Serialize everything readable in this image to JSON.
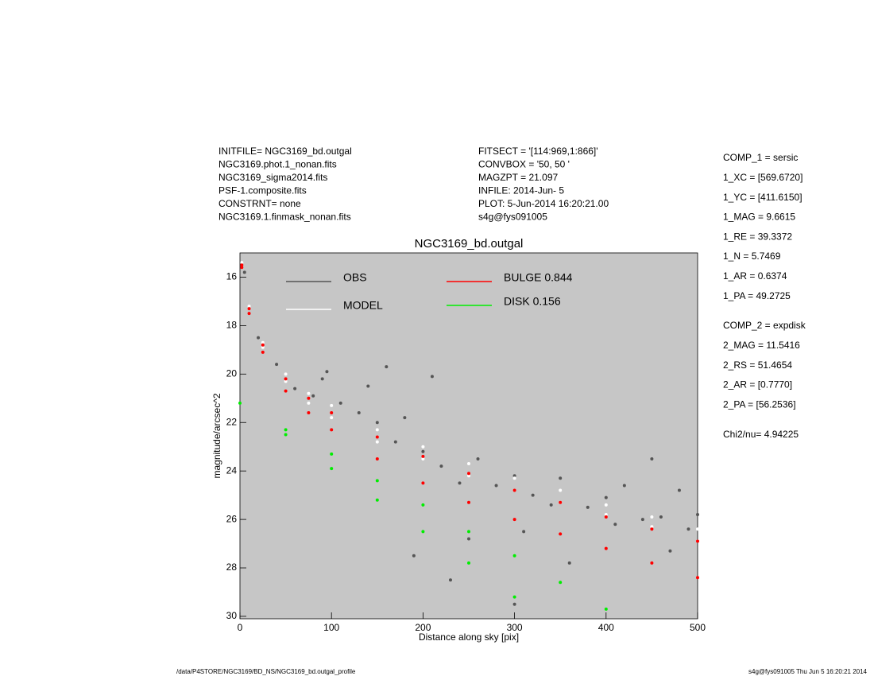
{
  "header": {
    "left": [
      "INITFILE= NGC3169_bd.outgal",
      "NGC3169.phot.1_nonan.fits",
      "NGC3169_sigma2014.fits",
      "PSF-1.composite.fits",
      "CONSTRNT= none",
      "NGC3169.1.finmask_nonan.fits"
    ],
    "middle": [
      "FITSECT = '[114:969,1:866]'",
      "CONVBOX = '50, 50  '",
      "MAGZPT =              21.097",
      "INFILE: 2014-Jun- 5",
      "PLOT:  5-Jun-2014 16:20:21.00",
      "s4g@fys091005"
    ]
  },
  "params": {
    "comp1": [
      "COMP_1  = sersic",
      "1_XC    = [569.6720]",
      "1_YC    = [411.6150]",
      "1_MAG   = 9.6615",
      "1_RE    = 39.3372",
      "1_N     = 5.7469",
      "1_AR    = 0.6374",
      "1_PA    = 49.2725"
    ],
    "comp2": [
      "COMP_2  = expdisk",
      "2_MAG   = 11.5416",
      "2_RS    = 51.4654",
      "2_AR    = [0.7770]",
      "2_PA    = [56.2536]"
    ],
    "chi": "Chi2/nu=      4.94225"
  },
  "footer": {
    "left": "/data/P4STORE/NGC3169/BD_NS/NGC3169_bd.outgal_profile",
    "right": "s4g@fys091005  Thu Jun  5 16:20:21 2014"
  },
  "chart_data": {
    "type": "scatter",
    "title": "NGC3169_bd.outgal",
    "x_label": "Distance along sky [pix]",
    "y_label": "magnitude/arcsec^2",
    "xlim": [
      0,
      500
    ],
    "ylim": [
      30.1,
      15
    ],
    "xticks": [
      0,
      100,
      200,
      300,
      400,
      500
    ],
    "yticks": [
      16,
      18,
      20,
      22,
      24,
      26,
      28,
      30
    ],
    "series": [
      {
        "name": "OBS",
        "color": "#555555",
        "x": [
          5,
          20,
          40,
          60,
          80,
          90,
          95,
          110,
          130,
          150,
          170,
          180,
          200,
          190,
          210,
          220,
          240,
          250,
          260,
          280,
          300,
          310,
          320,
          340,
          350,
          360,
          380,
          400,
          410,
          420,
          440,
          450,
          460,
          470,
          480,
          490,
          500,
          140,
          230,
          300,
          160
        ],
        "values": [
          15.8,
          18.5,
          19.6,
          20.6,
          20.9,
          20.2,
          19.9,
          21.2,
          21.6,
          22.0,
          22.8,
          21.8,
          23.2,
          27.5,
          20.1,
          23.8,
          24.5,
          26.8,
          23.5,
          24.6,
          24.2,
          26.5,
          25.0,
          25.4,
          24.3,
          27.8,
          25.5,
          25.1,
          26.2,
          24.6,
          26.0,
          23.5,
          25.9,
          27.3,
          24.8,
          26.4,
          25.8,
          20.5,
          28.5,
          29.5,
          19.7
        ]
      },
      {
        "name": "MODEL",
        "color": "#ffffff",
        "x": [
          2,
          10,
          10,
          25,
          25,
          50,
          50,
          75,
          75,
          100,
          100,
          150,
          150,
          200,
          200,
          250,
          250,
          300,
          300,
          350,
          350,
          400,
          400,
          450,
          450,
          500,
          500
        ],
        "values": [
          15.4,
          17.2,
          17.3,
          18.7,
          18.9,
          20.0,
          20.3,
          20.8,
          21.2,
          21.3,
          21.8,
          22.3,
          22.8,
          23.0,
          23.5,
          23.7,
          24.2,
          24.3,
          24.8,
          24.8,
          25.3,
          25.4,
          25.8,
          25.9,
          26.3,
          26.4,
          26.9
        ]
      },
      {
        "name": "BULGE  0.844",
        "color": "#ff0000",
        "x": [
          2,
          2,
          10,
          10,
          25,
          25,
          50,
          50,
          75,
          75,
          100,
          100,
          150,
          150,
          200,
          200,
          250,
          250,
          300,
          300,
          350,
          350,
          400,
          400,
          450,
          450,
          500,
          500
        ],
        "values": [
          15.5,
          15.6,
          17.3,
          17.5,
          18.8,
          19.1,
          20.2,
          20.7,
          21.0,
          21.6,
          21.6,
          22.3,
          22.6,
          23.5,
          23.4,
          24.5,
          24.1,
          25.3,
          24.8,
          26.0,
          25.3,
          26.6,
          25.9,
          27.2,
          26.4,
          27.8,
          26.9,
          28.4
        ]
      },
      {
        "name": "DISK  0.156",
        "color": "#00ee00",
        "x": [
          0,
          50,
          50,
          100,
          100,
          150,
          150,
          200,
          200,
          250,
          250,
          300,
          300,
          350,
          400
        ],
        "values": [
          21.2,
          22.3,
          22.5,
          23.3,
          23.9,
          24.4,
          25.2,
          25.4,
          26.5,
          26.5,
          27.8,
          27.5,
          29.2,
          28.6,
          29.7
        ]
      }
    ]
  }
}
